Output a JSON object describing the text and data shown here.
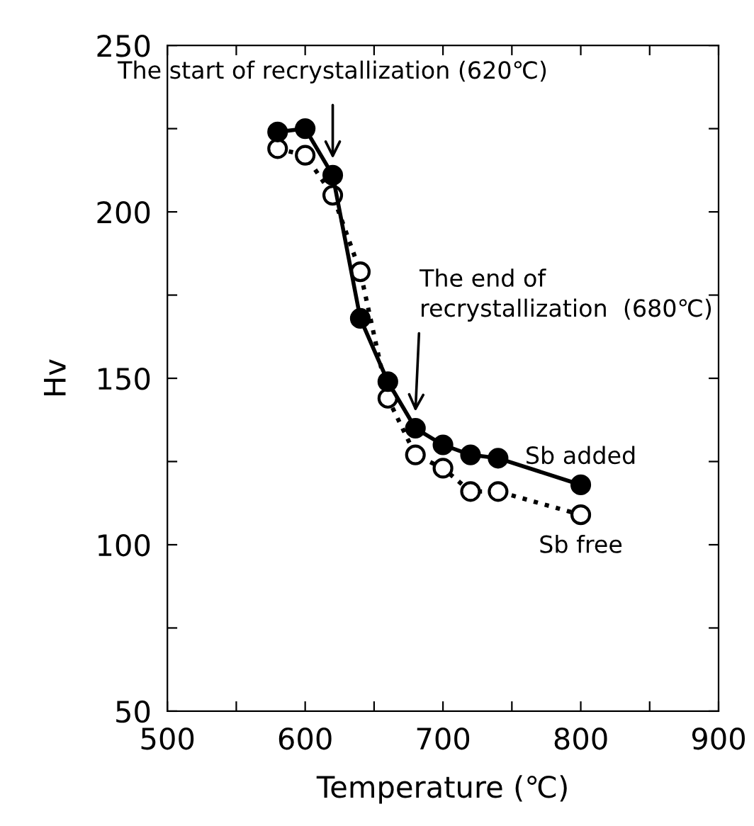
{
  "chart_data": {
    "type": "line",
    "xlabel": "Temperature (℃)",
    "ylabel": "Hv",
    "xlim": [
      500,
      900
    ],
    "ylim": [
      50,
      250
    ],
    "xticks": [
      500,
      {
        "value": 550,
        "label": null
      },
      600,
      {
        "value": 650,
        "label": null
      },
      700,
      {
        "value": 750,
        "label": null
      },
      800,
      {
        "value": 850,
        "label": null
      },
      900
    ],
    "yticks": [
      50,
      {
        "value": 75,
        "label": null
      },
      100,
      {
        "value": 125,
        "label": null
      },
      150,
      {
        "value": 175,
        "label": null
      },
      200,
      {
        "value": 225,
        "label": null
      },
      250
    ],
    "grid": false,
    "legend": false,
    "series": [
      {
        "name": "Sb added",
        "color": "#000000",
        "marker": "circle",
        "line_style": "solid",
        "x": [
          580,
          600,
          620,
          640,
          660,
          680,
          700,
          720,
          740,
          800
        ],
        "values": [
          224,
          225,
          211,
          168,
          149,
          135,
          130,
          127,
          126,
          118
        ]
      },
      {
        "name": "Sb free",
        "color": "#000000",
        "marker": "circle",
        "line_style": "dotted",
        "x": [
          580,
          600,
          620,
          640,
          660,
          680,
          700,
          720,
          740,
          800
        ],
        "values": [
          219,
          217,
          205,
          182,
          144,
          127,
          123,
          116,
          116,
          109
        ]
      }
    ],
    "annotations": [
      {
        "text": "The start of recrystallization (620℃)",
        "x": 620,
        "y": 216
      },
      {
        "text": "The end of\nrecrystallization  (680℃)",
        "x": 680,
        "y": 140
      }
    ]
  }
}
